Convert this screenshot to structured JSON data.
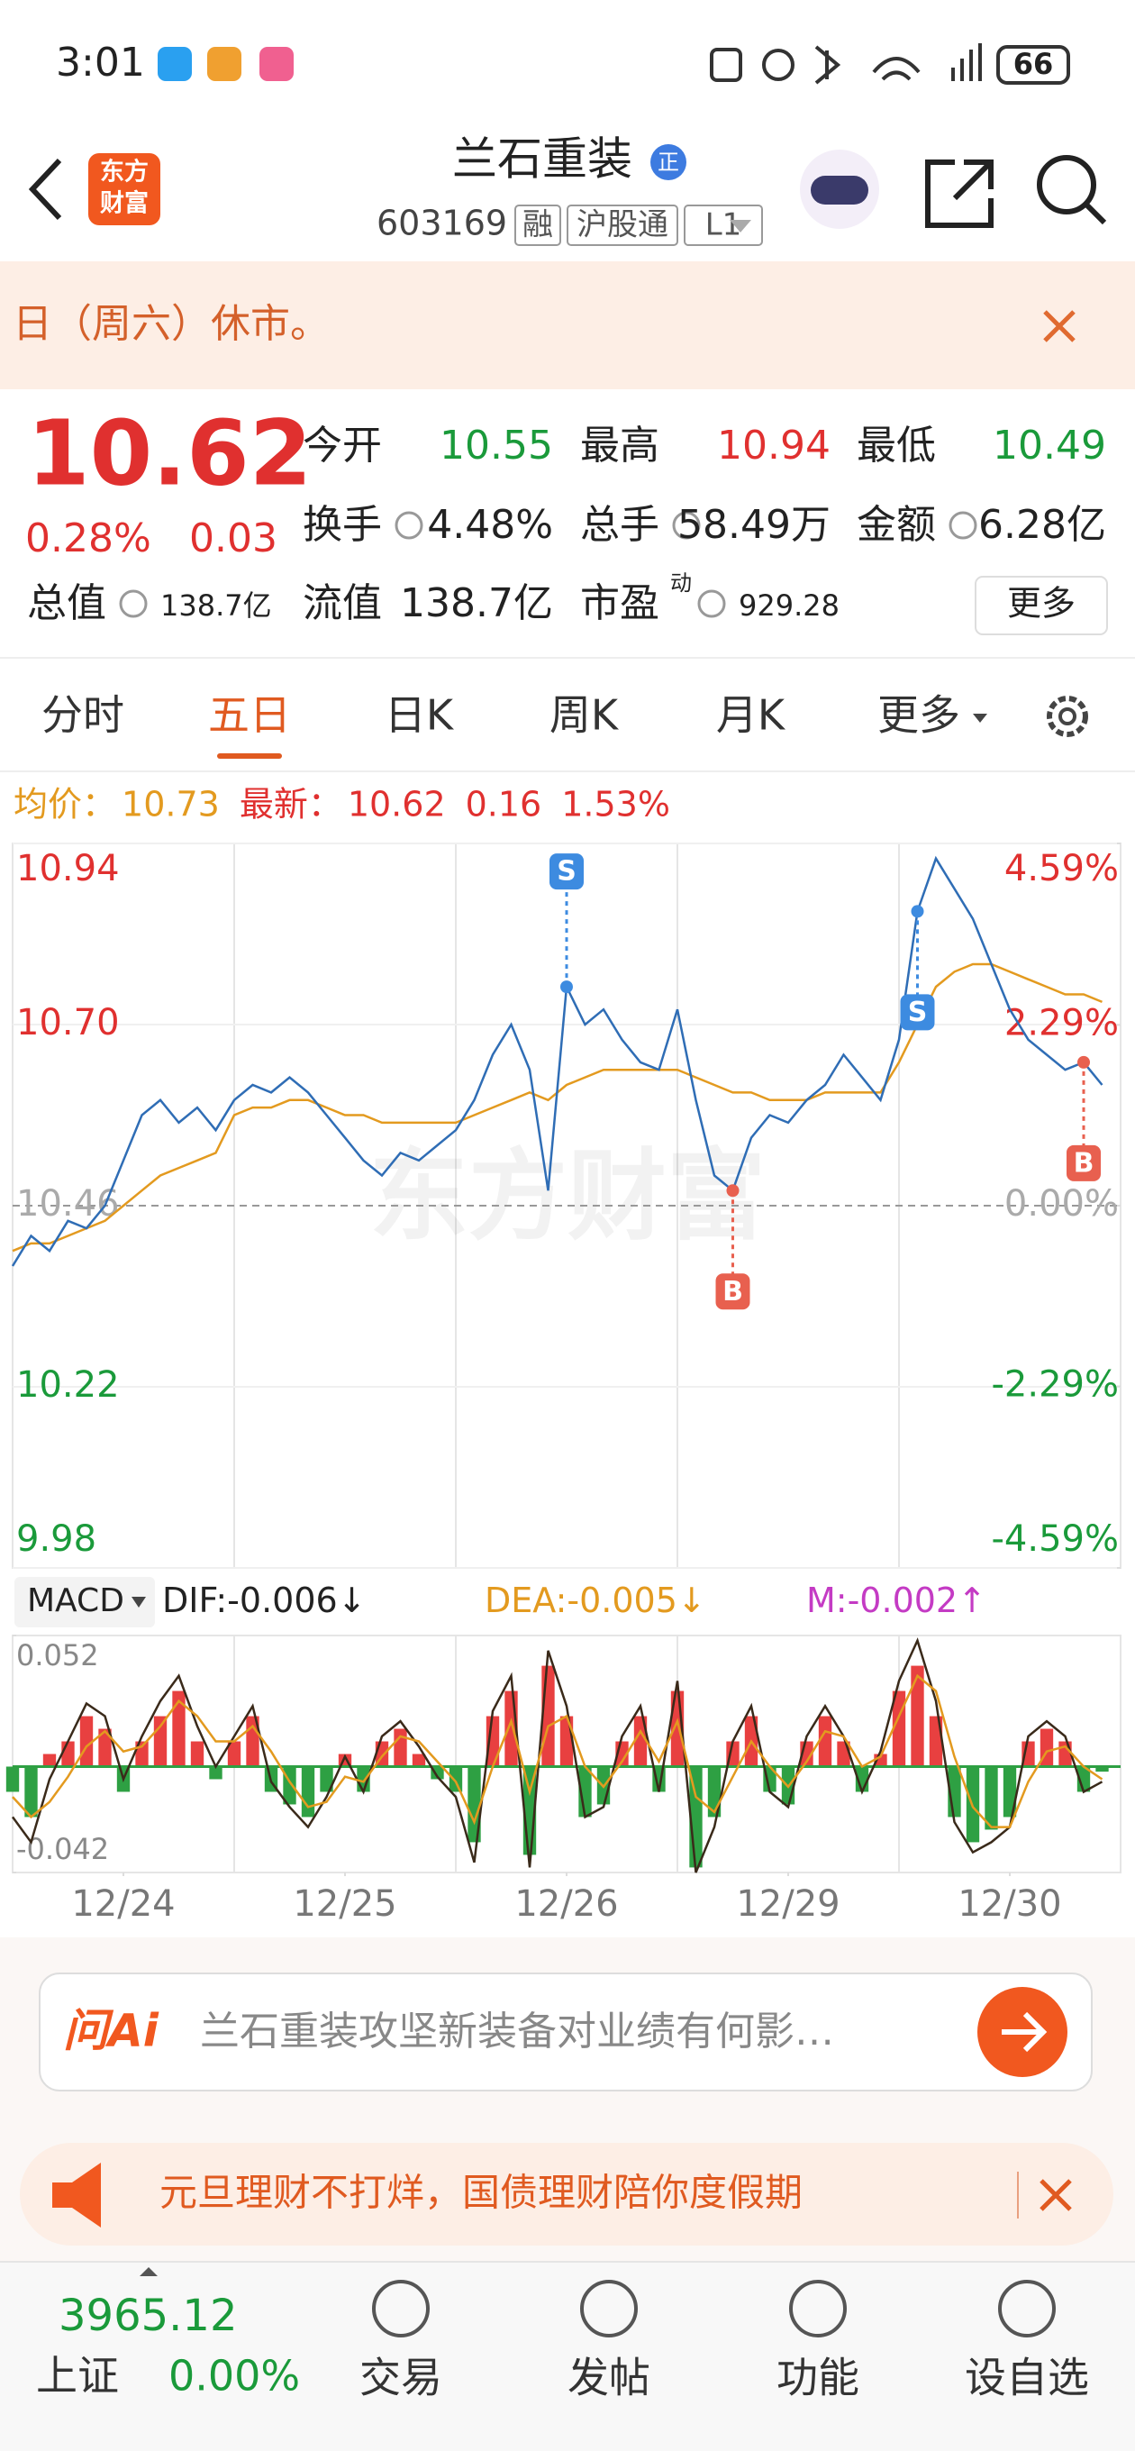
{
  "status_bar": {
    "time": "3:01",
    "battery": "66"
  },
  "header": {
    "title": "兰石重装",
    "badge": "正",
    "logo": [
      "东方",
      "财富"
    ],
    "code": "603169",
    "tags": [
      "融",
      "沪股通",
      "L1"
    ]
  },
  "notice": {
    "text": "日（周六）休市。"
  },
  "quote": {
    "price": "10.62",
    "change_pct": "0.28%",
    "change": "0.03",
    "color": "#e0302f",
    "fields": [
      {
        "label": "今开",
        "value": "10.55",
        "color": "#1a9a3a"
      },
      {
        "label": "最高",
        "value": "10.94",
        "color": "#e0302f"
      },
      {
        "label": "最低",
        "value": "10.49",
        "color": "#1a9a3a"
      },
      {
        "label": "换手",
        "value": "4.48%",
        "color": "#222222"
      },
      {
        "label": "总手",
        "value": "58.49万",
        "color": "#222222"
      },
      {
        "label": "金额",
        "value": "6.28亿",
        "color": "#222222"
      }
    ],
    "total_value_label": "总值",
    "total_value": "138.7亿",
    "float_label": "流值",
    "float_value": "138.7亿",
    "pe_label": "市盈",
    "pe_sup": "动",
    "pe_value": "929.28",
    "more": "更多"
  },
  "tabs": [
    "分时",
    "五日",
    "日K",
    "周K",
    "月K",
    "更多"
  ],
  "active_tab": 1,
  "macd_selector": "MACD",
  "chart_data": [
    {
      "type": "line",
      "watermark": "东方财富",
      "x": [
        0,
        1,
        2,
        3,
        4,
        5,
        6,
        7,
        8,
        9,
        10,
        11,
        12,
        13,
        14,
        15,
        16,
        17,
        18,
        19,
        20,
        21,
        22,
        23,
        24,
        25,
        26,
        27,
        28,
        29,
        30,
        31,
        32,
        33,
        34,
        35,
        36,
        37,
        38,
        39,
        40,
        41,
        42,
        43,
        44,
        45,
        46,
        47,
        48,
        49,
        50,
        51,
        52,
        53,
        54,
        55,
        56,
        57,
        58,
        59
      ],
      "xlim": [
        0,
        60
      ],
      "ylim": [
        9.98,
        10.94
      ],
      "yticks": [
        10.94,
        {
          "value": 10.7,
          "label": "10.70"
        },
        10.46,
        10.22,
        9.98
      ],
      "y2lim": [
        -4.59,
        4.59
      ],
      "y2ticks": [
        {
          "value": 4.59,
          "label": "4.59%"
        },
        {
          "value": 2.29,
          "label": "2.29%"
        },
        {
          "value": 0,
          "label": "0.00%"
        },
        {
          "value": -2.29,
          "label": "-2.29%"
        },
        {
          "value": -4.59,
          "label": "-4.59%"
        }
      ],
      "series": [
        {
          "name": "均价：",
          "latest": "10.73",
          "color": "#e39a1f",
          "label_color": "#e39a1f",
          "values": [
            10.4,
            10.41,
            10.41,
            10.42,
            10.43,
            10.44,
            10.46,
            10.48,
            10.5,
            10.51,
            10.52,
            10.53,
            10.58,
            10.59,
            10.59,
            10.6,
            10.6,
            10.59,
            10.58,
            10.58,
            10.57,
            10.57,
            10.57,
            10.57,
            10.57,
            10.58,
            10.59,
            10.6,
            10.61,
            10.6,
            10.62,
            10.63,
            10.64,
            10.64,
            10.64,
            10.64,
            10.64,
            10.63,
            10.62,
            10.61,
            10.61,
            10.6,
            10.6,
            10.6,
            10.61,
            10.61,
            10.61,
            10.61,
            10.65,
            10.7,
            10.75,
            10.77,
            10.78,
            10.78,
            10.77,
            10.76,
            10.75,
            10.74,
            10.74,
            10.73
          ]
        },
        {
          "name": "最新：",
          "latest": "10.62",
          "change": "0.16",
          "change_pct": "1.53%",
          "color": "#2f6db5",
          "label_color": "#e0302f",
          "values": [
            10.38,
            10.42,
            10.4,
            10.44,
            10.43,
            10.46,
            10.52,
            10.58,
            10.6,
            10.57,
            10.59,
            10.56,
            10.6,
            10.62,
            10.61,
            10.63,
            10.61,
            10.58,
            10.55,
            10.52,
            10.5,
            10.53,
            10.52,
            10.54,
            10.56,
            10.6,
            10.66,
            10.7,
            10.64,
            10.48,
            10.75,
            10.7,
            10.72,
            10.68,
            10.65,
            10.64,
            10.72,
            10.6,
            10.5,
            10.48,
            10.55,
            10.58,
            10.57,
            10.6,
            10.62,
            10.66,
            10.63,
            10.6,
            10.68,
            10.85,
            10.92,
            10.88,
            10.84,
            10.78,
            10.72,
            10.68,
            10.66,
            10.64,
            10.65,
            10.62
          ]
        }
      ],
      "annotations": [
        {
          "text": "S",
          "x": 30,
          "y": 10.75,
          "side": "above",
          "color": "#3d8be0"
        },
        {
          "text": "S",
          "x": 49,
          "y": 10.85,
          "side": "below",
          "color": "#3d8be0"
        },
        {
          "text": "B",
          "x": 39,
          "y": 10.48,
          "side": "below",
          "color": "#e8604f"
        },
        {
          "text": "B",
          "x": 58,
          "y": 10.65,
          "side": "below",
          "color": "#e8604f"
        }
      ]
    },
    {
      "type": "bar",
      "x": [
        0,
        1,
        2,
        3,
        4,
        5,
        6,
        7,
        8,
        9,
        10,
        11,
        12,
        13,
        14,
        15,
        16,
        17,
        18,
        19,
        20,
        21,
        22,
        23,
        24,
        25,
        26,
        27,
        28,
        29,
        30,
        31,
        32,
        33,
        34,
        35,
        36,
        37,
        38,
        39,
        40,
        41,
        42,
        43,
        44,
        45,
        46,
        47,
        48,
        49,
        50,
        51,
        52,
        53,
        54,
        55,
        56,
        57,
        58,
        59
      ],
      "xlim": [
        0,
        60
      ],
      "xticks": [
        {
          "value": 6,
          "label": "12/24"
        },
        {
          "value": 18,
          "label": "12/25"
        },
        {
          "value": 30,
          "label": "12/26"
        },
        {
          "value": 42,
          "label": "12/29"
        },
        {
          "value": 54,
          "label": "12/30"
        }
      ],
      "ylim": [
        -0.042,
        0.052
      ],
      "yticks": [
        0.052,
        -0.042
      ],
      "series": [
        {
          "name": "DIF",
          "latest": ":-0.006↓",
          "color": "#3a2a1a",
          "label_color": "#222222",
          "values": [
            -0.02,
            -0.03,
            -0.005,
            0.01,
            0.025,
            0.02,
            -0.005,
            0.012,
            0.026,
            0.036,
            0.016,
            0.0,
            0.012,
            0.024,
            -0.006,
            -0.016,
            -0.024,
            -0.012,
            0.004,
            -0.01,
            0.012,
            0.018,
            0.008,
            -0.004,
            -0.012,
            -0.038,
            0.022,
            0.036,
            -0.04,
            0.046,
            0.024,
            -0.02,
            -0.016,
            0.012,
            0.024,
            -0.01,
            0.034,
            -0.042,
            -0.024,
            0.01,
            0.024,
            -0.01,
            -0.016,
            0.012,
            0.024,
            0.012,
            -0.01,
            0.006,
            0.034,
            0.05,
            0.026,
            -0.022,
            -0.034,
            -0.03,
            -0.024,
            0.012,
            0.018,
            0.012,
            -0.01,
            -0.006
          ]
        },
        {
          "name": "DEA",
          "latest": ":-0.005↓",
          "color": "#e39a1f",
          "label_color": "#e39a1f",
          "values": [
            -0.012,
            -0.02,
            -0.014,
            -0.004,
            0.008,
            0.014,
            0.006,
            0.008,
            0.016,
            0.026,
            0.02,
            0.01,
            0.01,
            0.016,
            0.006,
            -0.006,
            -0.016,
            -0.014,
            -0.004,
            -0.006,
            0.004,
            0.012,
            0.01,
            0.002,
            -0.006,
            -0.022,
            0.0,
            0.018,
            -0.01,
            0.016,
            0.02,
            0.0,
            -0.008,
            0.002,
            0.014,
            0.002,
            0.018,
            -0.012,
            -0.018,
            -0.004,
            0.01,
            0.0,
            -0.008,
            0.002,
            0.014,
            0.012,
            0.0,
            0.004,
            0.02,
            0.036,
            0.03,
            0.004,
            -0.016,
            -0.024,
            -0.024,
            -0.006,
            0.006,
            0.008,
            0.0,
            -0.005
          ]
        },
        {
          "name": "M",
          "latest": ":-0.002↑",
          "color": "#c43bc4",
          "label_color": "#c43bc4",
          "up_color": "#e84040",
          "down_color": "#2ea043",
          "values": [
            -0.01,
            -0.02,
            0.005,
            0.01,
            0.02,
            0.015,
            -0.01,
            0.01,
            0.02,
            0.03,
            0.01,
            -0.005,
            0.01,
            0.02,
            -0.01,
            -0.015,
            -0.02,
            -0.01,
            0.005,
            -0.01,
            0.01,
            0.015,
            0.005,
            -0.005,
            -0.01,
            -0.03,
            0.02,
            0.03,
            -0.035,
            0.04,
            0.02,
            -0.02,
            -0.015,
            0.01,
            0.02,
            -0.01,
            0.03,
            -0.04,
            -0.02,
            0.01,
            0.02,
            -0.01,
            -0.015,
            0.01,
            0.02,
            0.01,
            -0.01,
            0.005,
            0.03,
            0.04,
            0.02,
            -0.02,
            -0.03,
            -0.025,
            -0.02,
            0.01,
            0.015,
            0.01,
            -0.01,
            -0.002
          ]
        }
      ]
    }
  ],
  "ai_bar": {
    "logo": "问Ai",
    "placeholder": "兰石重装攻坚新装备对业绩有何影…"
  },
  "banner": {
    "text": "元旦理财不打烊，国债理财陪你度假期"
  },
  "bottom_nav": {
    "index_value": "3965.12",
    "index_name": "上证",
    "index_change": "0.00%",
    "items": [
      "交易",
      "发帖",
      "功能",
      "设自选"
    ]
  }
}
